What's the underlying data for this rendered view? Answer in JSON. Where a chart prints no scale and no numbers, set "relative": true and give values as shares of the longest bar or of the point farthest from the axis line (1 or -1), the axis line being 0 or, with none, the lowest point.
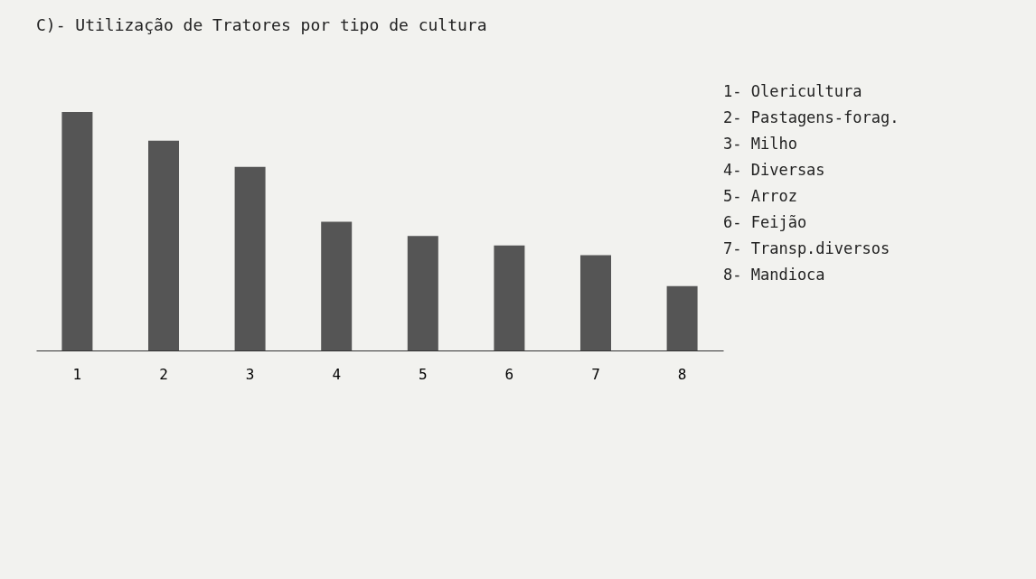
{
  "chart_data": {
    "type": "bar",
    "title": "C)- Utilização de Tratores por tipo de cultura",
    "categories": [
      "1",
      "2",
      "3",
      "4",
      "5",
      "6",
      "7",
      "8"
    ],
    "values": [
      1,
      0.88,
      0.77,
      0.54,
      0.48,
      0.44,
      0.4,
      0.27
    ],
    "color": "#555555",
    "relative": true,
    "annotations": [
      "1- Olericultura",
      "2- Pastagens-forag.",
      "3- Milho",
      "4- Diversas",
      "5- Arroz",
      "6- Feijão",
      "7- Transp.diversos",
      "8- Mandioca"
    ]
  }
}
